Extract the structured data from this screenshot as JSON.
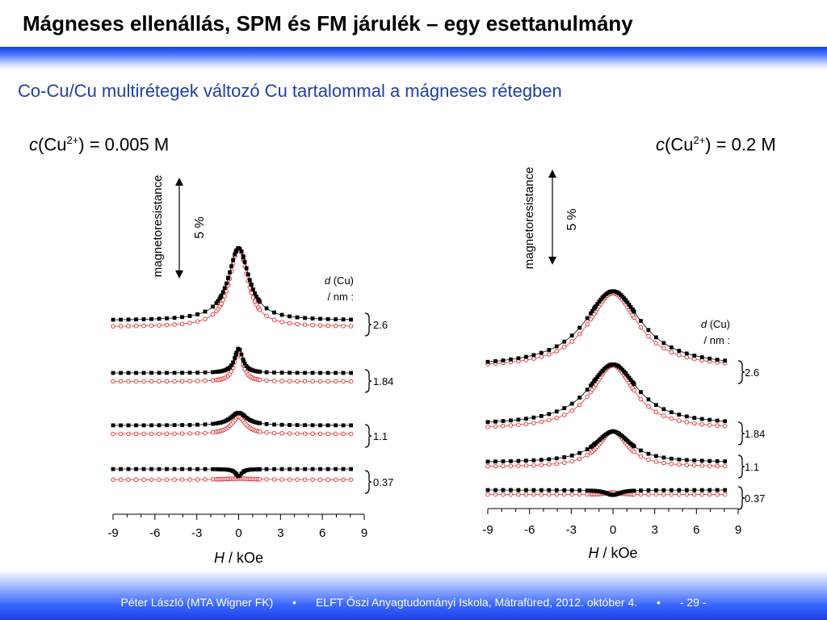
{
  "title": "Mágneses ellenállás, SPM és FM járulék – egy esettanulmány",
  "subtitle": "Co-Cu/Cu multirétegek változó Cu tartalommal a mágneses rétegben",
  "footer": {
    "author": "Péter László (MTA Wigner FK)",
    "sep1": "•",
    "event": "ELFT Őszi Anyagtudományi Iskola, Mátrafüred, 2012. október 4.",
    "sep2": "•",
    "page": "- 29 -"
  },
  "colors": {
    "series_filled": "#000000",
    "series_open": "#e03030",
    "accent": "#1f3fa8"
  },
  "chart_data": [
    {
      "type": "line",
      "concentration_c": "c",
      "concentration_ion": "(Cu",
      "concentration_charge": "2+",
      "concentration_value": ") = 0.005 M",
      "ylabel": "magnetoresistance",
      "scale_bar_label": "5 %",
      "xlabel_var": "H",
      "xlabel_unit": " / kOe",
      "xlim": [
        -9,
        9
      ],
      "x_ticks": [
        "-9",
        "-6",
        "-3",
        "0",
        "3",
        "6",
        "9"
      ],
      "legend_title_var": "d",
      "legend_title_rest": " (Cu)",
      "legend_title_unit": "/ nm :",
      "groups": [
        {
          "label": "2.6",
          "filled": {
            "base": 0.0,
            "peak": 13.6,
            "width": 0.9
          },
          "open": {
            "base": -1.2,
            "peak": 14.8,
            "width": 0.8
          }
        },
        {
          "label": "1.84",
          "filled": {
            "base": 0.0,
            "peak": 4.6,
            "width": 0.35
          },
          "open": {
            "base": -1.6,
            "peak": 6.0,
            "width": 0.35
          }
        },
        {
          "label": "1.1",
          "filled": {
            "base": 0.0,
            "peak": 2.4,
            "width": 0.7
          },
          "open": {
            "base": -1.6,
            "peak": 3.2,
            "width": 0.6
          }
        },
        {
          "label": "0.37",
          "filled": {
            "base": 0.0,
            "peak": -1.4,
            "width": 0.25
          },
          "open": {
            "base": -2.0,
            "peak": 0.2,
            "width": 1.2
          }
        }
      ]
    },
    {
      "type": "line",
      "concentration_c": "c",
      "concentration_ion": "(Cu",
      "concentration_charge": "2+",
      "concentration_value": ") = 0.2 M",
      "ylabel": "magnetoresistance",
      "scale_bar_label": "5 %",
      "xlabel_var": "H",
      "xlabel_unit": " / kOe",
      "xlim": [
        -9,
        9
      ],
      "x_ticks": [
        "-9",
        "-6",
        "-3",
        "0",
        "3",
        "6",
        "9"
      ],
      "legend_title_var": "d",
      "legend_title_rest": " (Cu)",
      "legend_title_unit": "/ nm  :",
      "groups": [
        {
          "label": "2.6",
          "filled": {
            "base": 0.0,
            "peak": 15.2,
            "width": 2.5
          },
          "open": {
            "base": -0.2,
            "peak": 15.0,
            "width": 2.2
          }
        },
        {
          "label": "1.84",
          "filled": {
            "base": 0.0,
            "peak": 12.2,
            "width": 2.2
          },
          "open": {
            "base": -0.8,
            "peak": 12.8,
            "width": 1.9
          }
        },
        {
          "label": "1.1",
          "filled": {
            "base": 0.0,
            "peak": 6.2,
            "width": 1.6
          },
          "open": {
            "base": -0.9,
            "peak": 7.2,
            "width": 1.3
          }
        },
        {
          "label": "0.37",
          "filled": {
            "base": 0.0,
            "peak": -1.0,
            "width": 0.6
          },
          "open": {
            "base": -0.9,
            "peak": 0.4,
            "width": 0.6
          }
        }
      ]
    }
  ]
}
